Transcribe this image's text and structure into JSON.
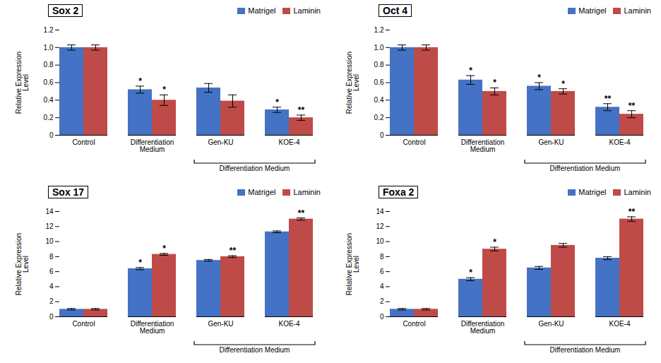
{
  "chart_data": [
    {
      "type": "bar",
      "title": "Sox 2",
      "categories": [
        "Control",
        "Differentiation\nMedium",
        "Gen-KU",
        "KOE-4"
      ],
      "ylabel": "Relative Expression\nLevel",
      "ylim": [
        0,
        1.2
      ],
      "yticks": [
        0,
        0.2,
        0.4,
        0.6,
        0.8,
        {
          "value": 1.0,
          "label": "1.0"
        },
        1.2
      ],
      "grid": false,
      "legend": "upper right",
      "series": [
        {
          "name": "Matrigel",
          "color": "#4472C4",
          "values": [
            1.0,
            0.52,
            0.54,
            0.29
          ],
          "errors": [
            0.03,
            0.04,
            0.05,
            0.03
          ]
        },
        {
          "name": "Laminin",
          "color": "#BE4B48",
          "values": [
            1.0,
            0.4,
            0.39,
            0.2
          ],
          "errors": [
            0.03,
            0.06,
            0.07,
            0.03
          ]
        }
      ],
      "annotations": [
        {
          "text": "*",
          "category": "Differentiation\nMedium",
          "series": "Matrigel"
        },
        {
          "text": "*",
          "category": "KOE-4",
          "series": "Matrigel"
        },
        {
          "text": "*",
          "category": "Differentiation\nMedium",
          "series": "Laminin"
        },
        {
          "text": "**",
          "category": "KOE-4",
          "series": "Laminin"
        },
        {
          "text": "Differentiation Medium",
          "span": [
            "Gen-KU",
            "KOE-4"
          ]
        }
      ]
    },
    {
      "type": "bar",
      "title": "Oct 4",
      "categories": [
        "Control",
        "Differentiation\nMedium",
        "Gen-KU",
        "KOE-4"
      ],
      "ylabel": "Relative Expression\nLevel",
      "ylim": [
        0,
        1.2
      ],
      "yticks": [
        0,
        0.2,
        0.4,
        0.6,
        0.8,
        {
          "value": 1.0,
          "label": "1.0"
        },
        1.2
      ],
      "grid": false,
      "legend": "upper right",
      "series": [
        {
          "name": "Matrigel",
          "color": "#4472C4",
          "values": [
            1.0,
            0.63,
            0.56,
            0.32
          ],
          "errors": [
            0.03,
            0.05,
            0.04,
            0.04
          ]
        },
        {
          "name": "Laminin",
          "color": "#BE4B48",
          "values": [
            1.0,
            0.5,
            0.5,
            0.24
          ],
          "errors": [
            0.03,
            0.04,
            0.03,
            0.04
          ]
        }
      ],
      "annotations": [
        {
          "text": "*",
          "category": "Differentiation\nMedium",
          "series": "Matrigel"
        },
        {
          "text": "*",
          "category": "Gen-KU",
          "series": "Matrigel"
        },
        {
          "text": "**",
          "category": "KOE-4",
          "series": "Matrigel"
        },
        {
          "text": "*",
          "category": "Differentiation\nMedium",
          "series": "Laminin"
        },
        {
          "text": "*",
          "category": "Gen-KU",
          "series": "Laminin"
        },
        {
          "text": "**",
          "category": "KOE-4",
          "series": "Laminin"
        },
        {
          "text": "Differentiation Medium",
          "span": [
            "Gen-KU",
            "KOE-4"
          ]
        }
      ]
    },
    {
      "type": "bar",
      "title": "Sox 17",
      "categories": [
        "Control",
        "Differentiation\nMedium",
        "Gen-KU",
        "KOE-4"
      ],
      "ylabel": "Relative Expression\nLevel",
      "ylim": [
        0,
        14
      ],
      "yticks": [
        0,
        2,
        4,
        6,
        8,
        10,
        12,
        14
      ],
      "grid": false,
      "legend": "upper right",
      "series": [
        {
          "name": "Matrigel",
          "color": "#4472C4",
          "values": [
            1.0,
            6.4,
            7.5,
            11.3
          ],
          "errors": [
            0.1,
            0.15,
            0.12,
            0.12
          ]
        },
        {
          "name": "Laminin",
          "color": "#BE4B48",
          "values": [
            1.0,
            8.3,
            8.0,
            13.0
          ],
          "errors": [
            0.1,
            0.12,
            0.12,
            0.15
          ]
        }
      ],
      "annotations": [
        {
          "text": "*",
          "category": "Differentiation\nMedium",
          "series": "Matrigel"
        },
        {
          "text": "*",
          "category": "Differentiation\nMedium",
          "series": "Laminin"
        },
        {
          "text": "**",
          "category": "Gen-KU",
          "series": "Laminin"
        },
        {
          "text": "**",
          "category": "KOE-4",
          "series": "Laminin"
        },
        {
          "text": "Differentiation Medium",
          "span": [
            "Gen-KU",
            "KOE-4"
          ]
        }
      ]
    },
    {
      "type": "bar",
      "title": "Foxa 2",
      "categories": [
        "Control",
        "Differentiation\nMedium",
        "Gen-KU",
        "KOE-4"
      ],
      "ylabel": "Relative Expression\nLevel",
      "ylim": [
        0,
        14
      ],
      "yticks": [
        0,
        2,
        4,
        6,
        8,
        10,
        12,
        14
      ],
      "grid": false,
      "legend": "upper right",
      "series": [
        {
          "name": "Matrigel",
          "color": "#4472C4",
          "values": [
            1.0,
            5.0,
            6.5,
            7.8
          ],
          "errors": [
            0.1,
            0.2,
            0.2,
            0.2
          ]
        },
        {
          "name": "Laminin",
          "color": "#BE4B48",
          "values": [
            1.0,
            9.0,
            9.5,
            13.0
          ],
          "errors": [
            0.1,
            0.25,
            0.25,
            0.3
          ]
        }
      ],
      "annotations": [
        {
          "text": "*",
          "category": "Differentiation\nMedium",
          "series": "Matrigel"
        },
        {
          "text": "*",
          "category": "Differentiation\nMedium",
          "series": "Laminin"
        },
        {
          "text": "**",
          "category": "KOE-4",
          "series": "Laminin"
        },
        {
          "text": "Differentiation Medium",
          "span": [
            "Gen-KU",
            "KOE-4"
          ]
        }
      ]
    }
  ]
}
